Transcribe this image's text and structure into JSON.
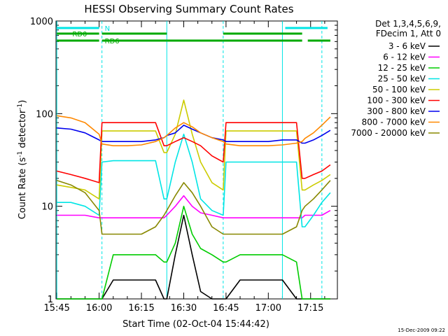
{
  "chart_data": {
    "type": "line",
    "title": "HESSI Observing Summary Count Rates",
    "xlabel": "Start Time (02-Oct-04 15:44:42)",
    "ylabel_base": "Count Rate (s",
    "ylabel_sup1": "-1",
    "ylabel_mid": " detector",
    "ylabel_sup2": "-1",
    "ylabel_end": ")",
    "xlim": [
      "15:44:42",
      "17:24:30"
    ],
    "ylim": [
      1,
      1000
    ],
    "yscale": "log",
    "xticks": [
      "15:45",
      "16:00",
      "16:15",
      "16:30",
      "16:45",
      "17:00",
      "17:15"
    ],
    "yticks": [
      "1",
      "10",
      "100",
      "1000"
    ],
    "legend_header": [
      "Det 1,3,4,5,6,9,",
      "FDecim 1, Att 0"
    ],
    "legend_position": "right",
    "timestamp": "15-Dec-2009 09:22",
    "flags": [
      {
        "label": "N",
        "color": "#00e5e5",
        "segments": [
          [
            "15:45",
            "16:00"
          ],
          [
            "17:06",
            "17:21"
          ]
        ]
      },
      {
        "label": "RD0",
        "color": "#00aa00",
        "segments": [
          [
            "15:45",
            "16:00"
          ],
          [
            "16:01",
            "16:24"
          ],
          [
            "16:44",
            "17:12"
          ]
        ]
      },
      {
        "label": "RD6",
        "color": "#00aa00",
        "segments": [
          [
            "15:45",
            "16:00"
          ],
          [
            "16:01",
            "16:24"
          ],
          [
            "16:24",
            "16:44"
          ],
          [
            "16:44",
            "17:12"
          ],
          [
            "17:14",
            "17:22"
          ]
        ]
      }
    ],
    "vlines": [
      {
        "t": "15:45",
        "style": "solid"
      },
      {
        "t": "16:01",
        "style": "dashed"
      },
      {
        "t": "16:24",
        "style": "solid"
      },
      {
        "t": "16:44",
        "style": "dashed"
      },
      {
        "t": "17:05",
        "style": "solid"
      },
      {
        "t": "17:19",
        "style": "dashed"
      }
    ],
    "x": [
      "15:45",
      "15:50",
      "15:55",
      "16:00",
      "16:01",
      "16:05",
      "16:10",
      "16:15",
      "16:20",
      "16:23",
      "16:24",
      "16:27",
      "16:30",
      "16:33",
      "16:36",
      "16:40",
      "16:44",
      "16:45",
      "16:50",
      "16:55",
      "17:00",
      "17:05",
      "17:10",
      "17:12",
      "17:13",
      "17:16",
      "17:19",
      "17:22"
    ],
    "series": [
      {
        "name": "3 - 6 keV",
        "color": "#000000",
        "values": [
          1,
          1,
          1,
          1,
          1,
          1.6,
          1.6,
          1.6,
          1.6,
          1,
          1,
          3,
          8,
          3,
          1.2,
          1,
          1,
          1,
          1.6,
          1.6,
          1.6,
          1.6,
          1,
          1,
          1,
          1,
          1,
          1
        ]
      },
      {
        "name": "6 - 12 keV",
        "color": "#ff00ff",
        "values": [
          8,
          8,
          8,
          7.5,
          7.5,
          7.5,
          7.5,
          7.5,
          7.5,
          7.5,
          8,
          10,
          13,
          10,
          8.5,
          8,
          7.5,
          7.5,
          7.5,
          7.5,
          7.5,
          7.5,
          7.5,
          7.5,
          8,
          8,
          8,
          9
        ]
      },
      {
        "name": "12 - 25 keV",
        "color": "#00cc00",
        "values": [
          1,
          1,
          1,
          1,
          1,
          3,
          3,
          3,
          3,
          2.5,
          2.5,
          4,
          10,
          5,
          3.5,
          3,
          2.5,
          2.5,
          3,
          3,
          3,
          3,
          2.5,
          1,
          1,
          1,
          1,
          1
        ]
      },
      {
        "name": "25 - 50 keV",
        "color": "#00e5e5",
        "values": [
          11,
          11,
          10,
          8,
          30,
          31,
          31,
          31,
          31,
          12,
          12,
          30,
          60,
          30,
          12,
          9,
          8,
          30,
          30,
          30,
          30,
          30,
          30,
          6,
          6,
          8,
          11,
          14
        ]
      },
      {
        "name": "50 - 100 keV",
        "color": "#cccc00",
        "values": [
          17,
          16,
          15,
          12,
          65,
          65,
          65,
          65,
          65,
          38,
          38,
          60,
          140,
          60,
          30,
          18,
          15,
          65,
          65,
          65,
          65,
          65,
          65,
          15,
          15,
          17,
          19,
          22
        ]
      },
      {
        "name": "100 - 300 keV",
        "color": "#ff0000",
        "values": [
          24,
          22,
          20,
          18,
          80,
          80,
          80,
          80,
          80,
          45,
          45,
          50,
          55,
          50,
          45,
          35,
          30,
          80,
          80,
          80,
          80,
          80,
          80,
          20,
          20,
          22,
          24,
          28
        ]
      },
      {
        "name": "300 - 800 keV",
        "color": "#0000ee",
        "values": [
          70,
          68,
          62,
          52,
          50,
          50,
          50,
          50,
          52,
          55,
          58,
          62,
          75,
          68,
          62,
          55,
          52,
          50,
          50,
          50,
          50,
          52,
          52,
          48,
          48,
          52,
          58,
          66
        ]
      },
      {
        "name": "800 - 7000 keV",
        "color": "#ff8800",
        "values": [
          95,
          90,
          80,
          60,
          47,
          45,
          45,
          46,
          50,
          55,
          58,
          70,
          80,
          72,
          62,
          55,
          50,
          47,
          45,
          45,
          45,
          46,
          48,
          50,
          54,
          62,
          75,
          92
        ]
      },
      {
        "name": "7000 - 20000 keV",
        "color": "#888800",
        "values": [
          19,
          17,
          14,
          9,
          5,
          5,
          5,
          5,
          6,
          8,
          9,
          13,
          18,
          14,
          10,
          6,
          5,
          5,
          5,
          5,
          5,
          5,
          6,
          9,
          10,
          12,
          15,
          19
        ]
      }
    ]
  }
}
